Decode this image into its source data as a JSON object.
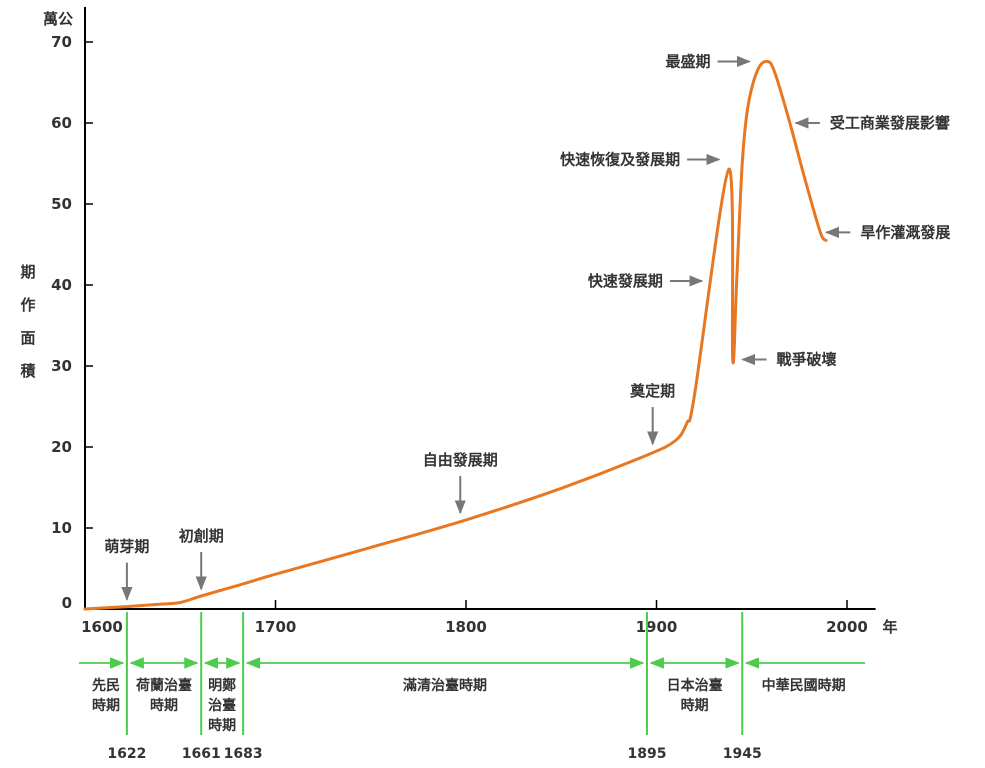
{
  "chart_data": {
    "type": "line",
    "title": "",
    "ylabel": "期作面積",
    "y_unit": "萬公",
    "x_unit": "年",
    "xlim": [
      1600,
      2015
    ],
    "ylim": [
      0,
      70
    ],
    "x_ticks": [
      1600,
      1700,
      1800,
      1900,
      2000
    ],
    "y_ticks": [
      0,
      10,
      20,
      30,
      40,
      50,
      60,
      70
    ],
    "grid": false,
    "series": [
      {
        "name": "",
        "color": "#E87722",
        "points": [
          [
            1600,
            0
          ],
          [
            1622,
            0.3
          ],
          [
            1640,
            0.6
          ],
          [
            1650,
            0.8
          ],
          [
            1661,
            1.6
          ],
          [
            1683,
            3.1
          ],
          [
            1700,
            4.3
          ],
          [
            1750,
            7.6
          ],
          [
            1800,
            11.0
          ],
          [
            1850,
            14.9
          ],
          [
            1895,
            19.0
          ],
          [
            1910,
            20.8
          ],
          [
            1916,
            23.0
          ],
          [
            1920,
            26.5
          ],
          [
            1938,
            54.3
          ],
          [
            1940,
            30.8
          ],
          [
            1942,
            40.0
          ],
          [
            1945,
            55.0
          ],
          [
            1948,
            62.0
          ],
          [
            1953,
            66.5
          ],
          [
            1958,
            67.6
          ],
          [
            1962,
            66.3
          ],
          [
            1970,
            60.0
          ],
          [
            1978,
            53.0
          ],
          [
            1986,
            46.5
          ],
          [
            1989,
            45.5
          ]
        ]
      }
    ],
    "annotations": [
      {
        "text": "萌芽期",
        "arrow": "down",
        "x": 1622,
        "y": 0.3
      },
      {
        "text": "初創期",
        "arrow": "down",
        "x": 1661,
        "y": 1.6
      },
      {
        "text": "自由發展期",
        "arrow": "down",
        "x": 1797,
        "y": 11.0
      },
      {
        "text": "奠定期",
        "arrow": "down",
        "x": 1898,
        "y": 19.5
      },
      {
        "text": "快速發展期",
        "arrow": "right",
        "x": 1927,
        "y": 40.5
      },
      {
        "text": "戰爭破壞",
        "arrow": "left",
        "x": 1942,
        "y": 30.8
      },
      {
        "text": "快速恢復及發展期",
        "arrow": "right",
        "x": 1936,
        "y": 55.5
      },
      {
        "text": "最盛期",
        "arrow": "right",
        "x": 1952,
        "y": 67.6
      },
      {
        "text": "受工商業發展影響",
        "arrow": "left",
        "x": 1970,
        "y": 60.0
      },
      {
        "text": "旱作灌溉發展",
        "arrow": "left",
        "x": 1986,
        "y": 46.5
      }
    ],
    "periods": [
      {
        "label": "先民時期",
        "lines": [
          "先民",
          "時期"
        ],
        "start": 1600,
        "end": 1622
      },
      {
        "label": "荷蘭治臺時期",
        "lines": [
          "荷蘭治臺",
          "時期"
        ],
        "start": 1622,
        "end": 1661
      },
      {
        "label": "明鄭治臺時期",
        "lines": [
          "明鄭",
          "治臺",
          "時期"
        ],
        "start": 1661,
        "end": 1683
      },
      {
        "label": "滿清治臺時期",
        "lines": [
          "滿清治臺時期"
        ],
        "start": 1683,
        "end": 1895
      },
      {
        "label": "日本治臺時期",
        "lines": [
          "日本治臺",
          "時期"
        ],
        "start": 1895,
        "end": 1945
      },
      {
        "label": "中華民國時期",
        "lines": [
          "中華民國時期"
        ],
        "start": 1945,
        "end": 2015
      }
    ],
    "boundary_years": [
      1622,
      1661,
      1683,
      1895,
      1945
    ],
    "colors": {
      "line": "#E87722",
      "period": "#4CCB4C",
      "axis": "#000000",
      "arrow": "#777777",
      "text": "#333333"
    }
  }
}
